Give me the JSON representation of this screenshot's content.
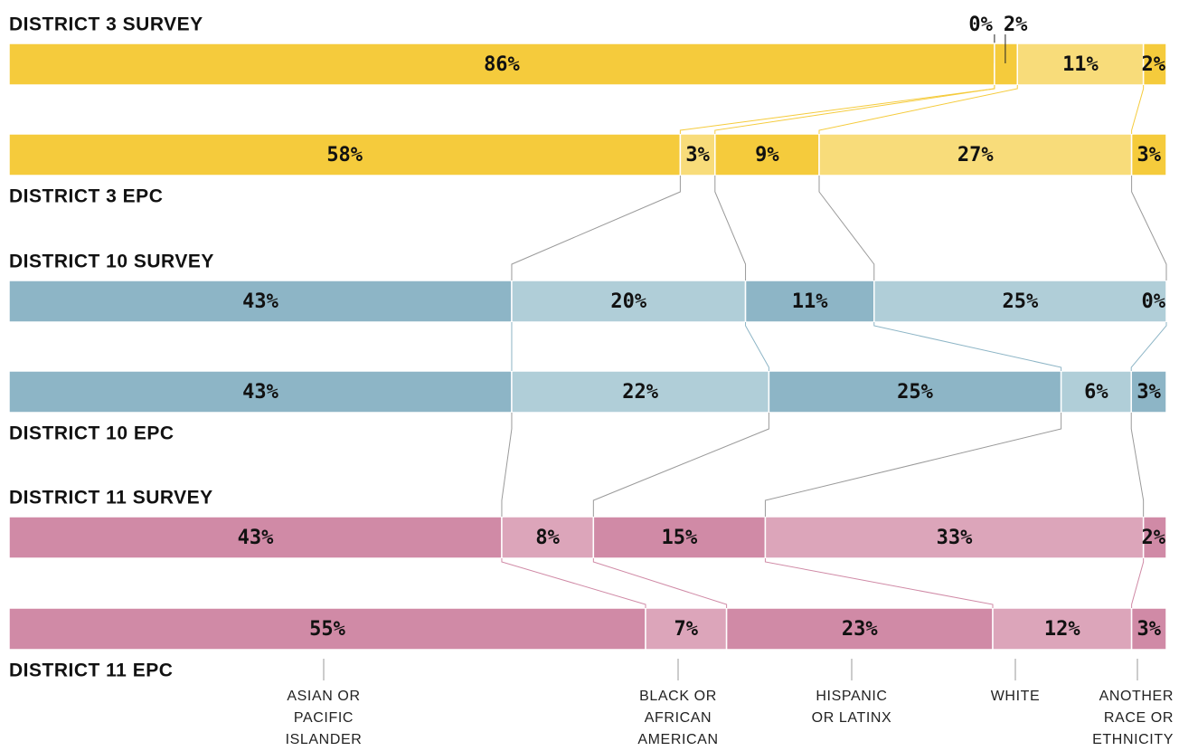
{
  "chart_data": {
    "type": "stacked_bar_100",
    "categories": [
      "ASIAN OR PACIFIC ISLANDER",
      "BLACK OR AFRICAN AMERICAN",
      "HISPANIC OR LATINX",
      "WHITE",
      "ANOTHER RACE OR ETHNICITY"
    ],
    "series": [
      {
        "name": "DISTRICT 3 SURVEY",
        "colors": [
          "#f5cb3c",
          "#f8dc7a"
        ],
        "values": [
          86,
          0,
          2,
          11,
          2
        ],
        "value_labels": [
          "86%",
          "0%",
          "2%",
          "11%",
          "2%"
        ]
      },
      {
        "name": "DISTRICT 3 EPC",
        "colors": [
          "#f5cb3c",
          "#f8dc7a"
        ],
        "values": [
          58,
          3,
          9,
          27,
          3
        ],
        "value_labels": [
          "58%",
          "3%",
          "9%",
          "27%",
          "3%"
        ]
      },
      {
        "name": "DISTRICT 10 SURVEY",
        "colors": [
          "#8db5c6",
          "#b0ced8"
        ],
        "values": [
          43,
          20,
          11,
          25,
          0
        ],
        "value_labels": [
          "43%",
          "20%",
          "11%",
          "25%",
          "0%"
        ]
      },
      {
        "name": "DISTRICT 10 EPC",
        "colors": [
          "#8db5c6",
          "#b0ced8"
        ],
        "values": [
          43,
          22,
          25,
          6,
          3
        ],
        "value_labels": [
          "43%",
          "22%",
          "25%",
          "6%",
          "3%"
        ]
      },
      {
        "name": "DISTRICT 11 SURVEY",
        "colors": [
          "#d08aa6",
          "#dca5ba"
        ],
        "values": [
          43,
          8,
          15,
          33,
          2
        ],
        "value_labels": [
          "43%",
          "8%",
          "15%",
          "33%",
          "2%"
        ]
      },
      {
        "name": "DISTRICT 11 EPC",
        "colors": [
          "#d08aa6",
          "#dca5ba"
        ],
        "values": [
          55,
          7,
          23,
          12,
          3
        ],
        "value_labels": [
          "55%",
          "7%",
          "23%",
          "12%",
          "3%"
        ]
      }
    ]
  }
}
